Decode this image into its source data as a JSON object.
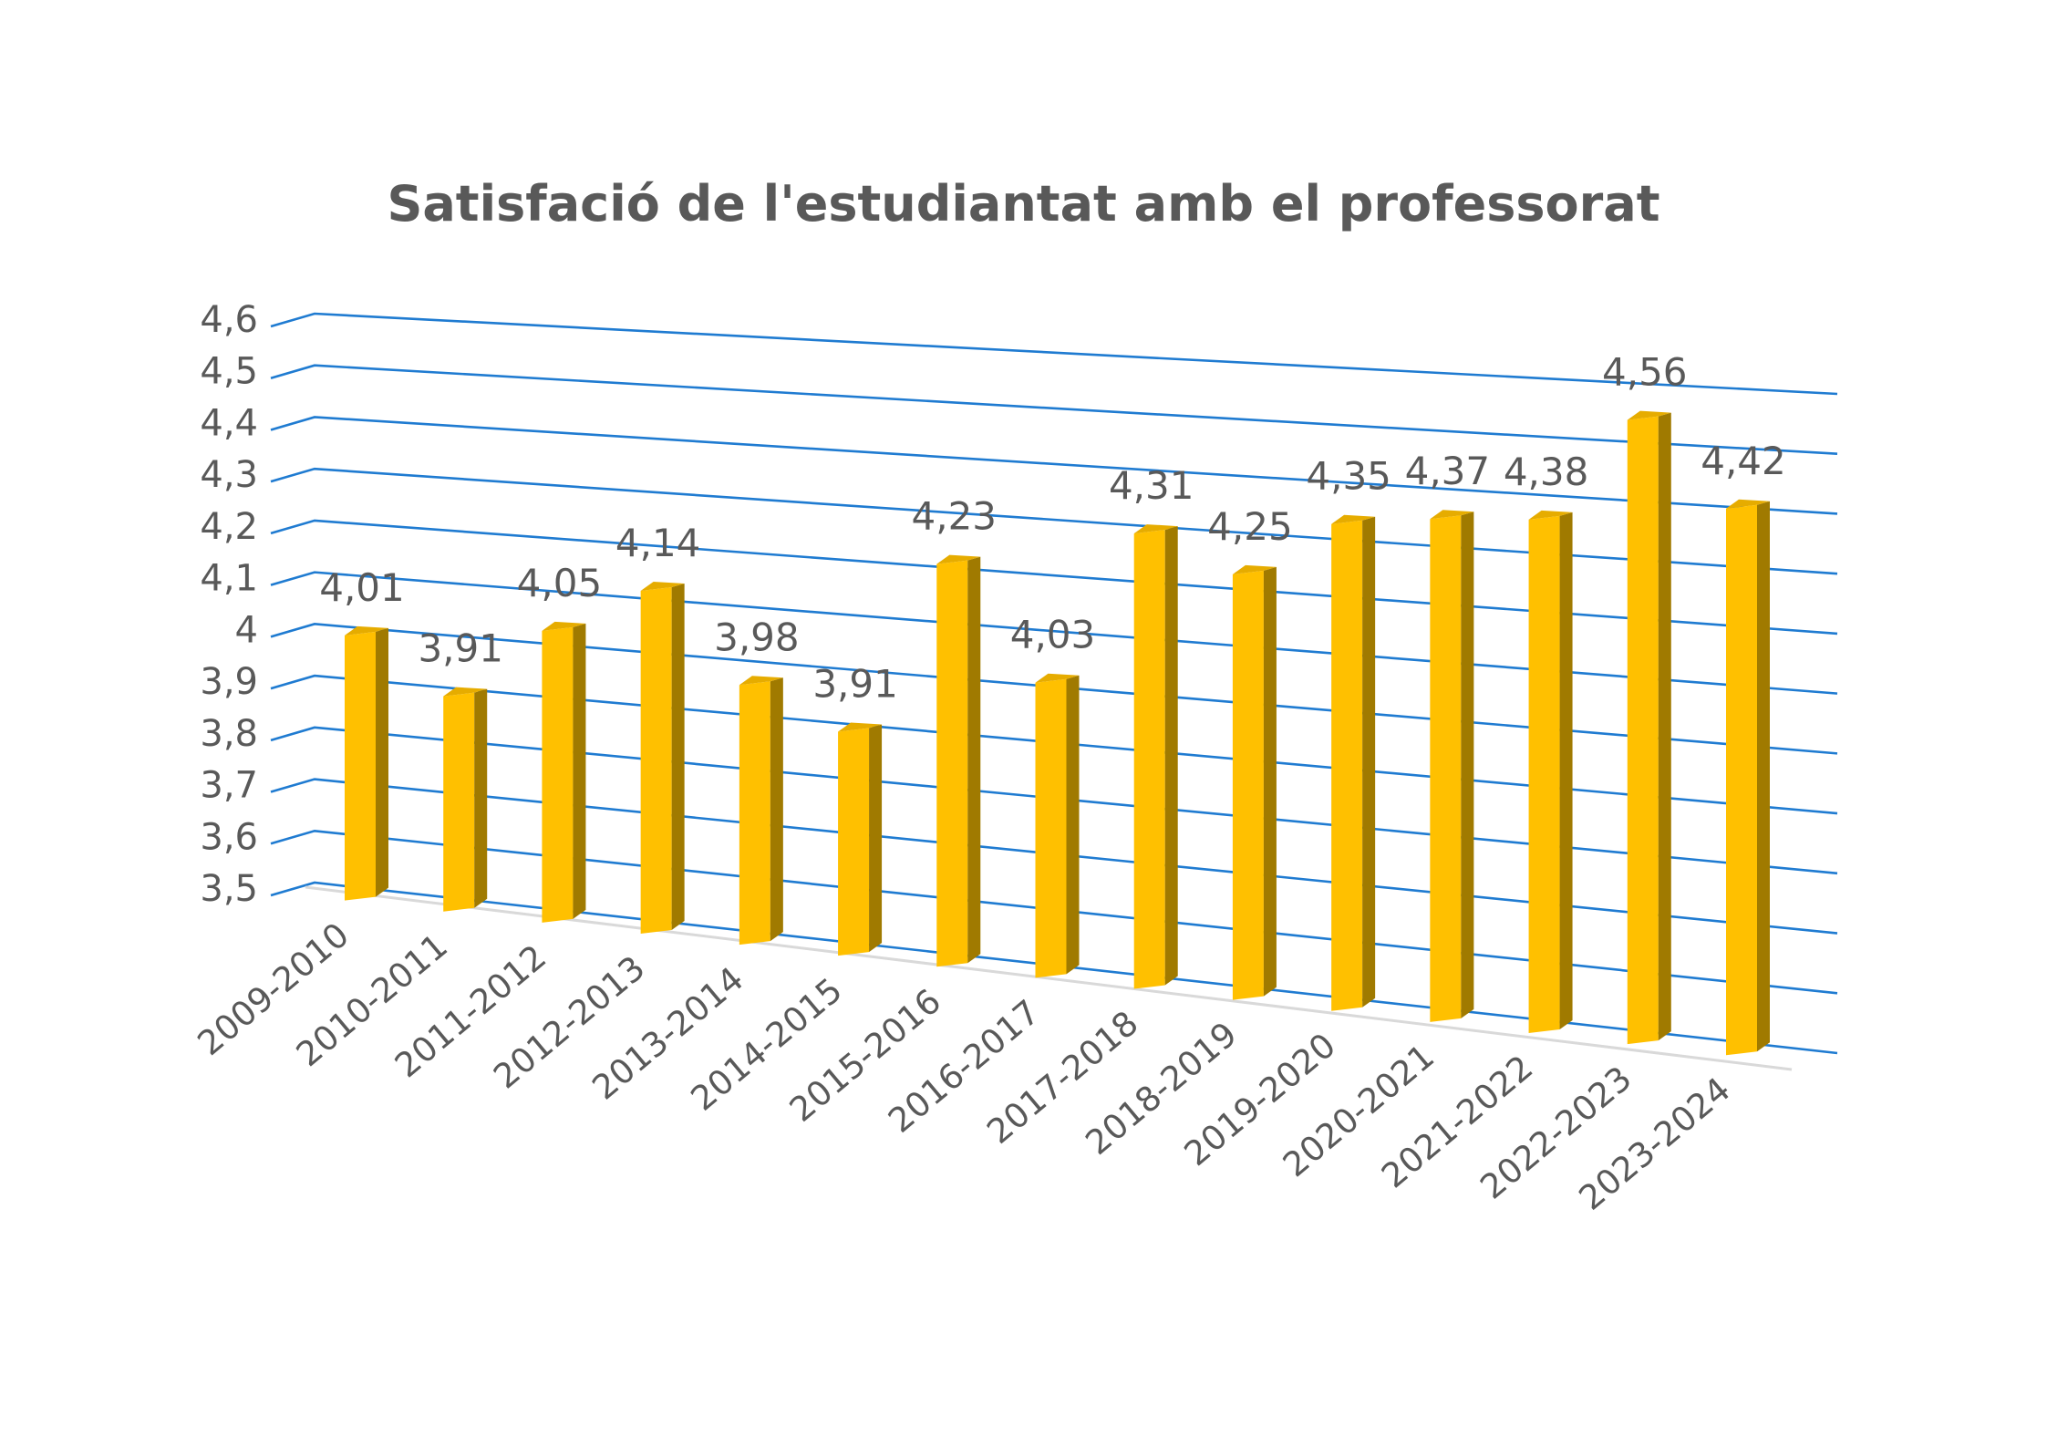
{
  "chart_data": {
    "type": "bar",
    "title": "Satisfació de l'estudiantat amb el professorat",
    "xlabel": "",
    "ylabel": "",
    "ylim": [
      3.5,
      4.6
    ],
    "y_ticks": [
      "3,5",
      "3,6",
      "3,7",
      "3,8",
      "3,9",
      "4",
      "4,1",
      "4,2",
      "4,3",
      "4,4",
      "4,5",
      "4,6"
    ],
    "categories": [
      "2009-2010",
      "2010-2011",
      "2011-2012",
      "2012-2013",
      "2013-2014",
      "2014-2015",
      "2015-2016",
      "2016-2017",
      "2017-2018",
      "2018-2019",
      "2019-2020",
      "2020-2021",
      "2021-2022",
      "2022-2023",
      "2023-2024"
    ],
    "values": [
      4.01,
      3.91,
      4.05,
      4.14,
      3.98,
      3.91,
      4.23,
      4.03,
      4.31,
      4.25,
      4.35,
      4.37,
      4.38,
      4.56,
      4.42
    ],
    "data_labels": [
      "4,01",
      "3,91",
      "4,05",
      "4,14",
      "3,98",
      "3,91",
      "4,23",
      "4,03",
      "4,31",
      "4,25",
      "4,35",
      "4,37",
      "4,38",
      "4,56",
      "4,42"
    ],
    "grid": true,
    "legend": "none",
    "colors": {
      "bar_front": "#FFC000",
      "bar_side": "#A07A00",
      "bar_top": "#E6AC00",
      "gridline": "#1F7BD1",
      "floor": "#D9D9D9",
      "text": "#595959"
    }
  }
}
